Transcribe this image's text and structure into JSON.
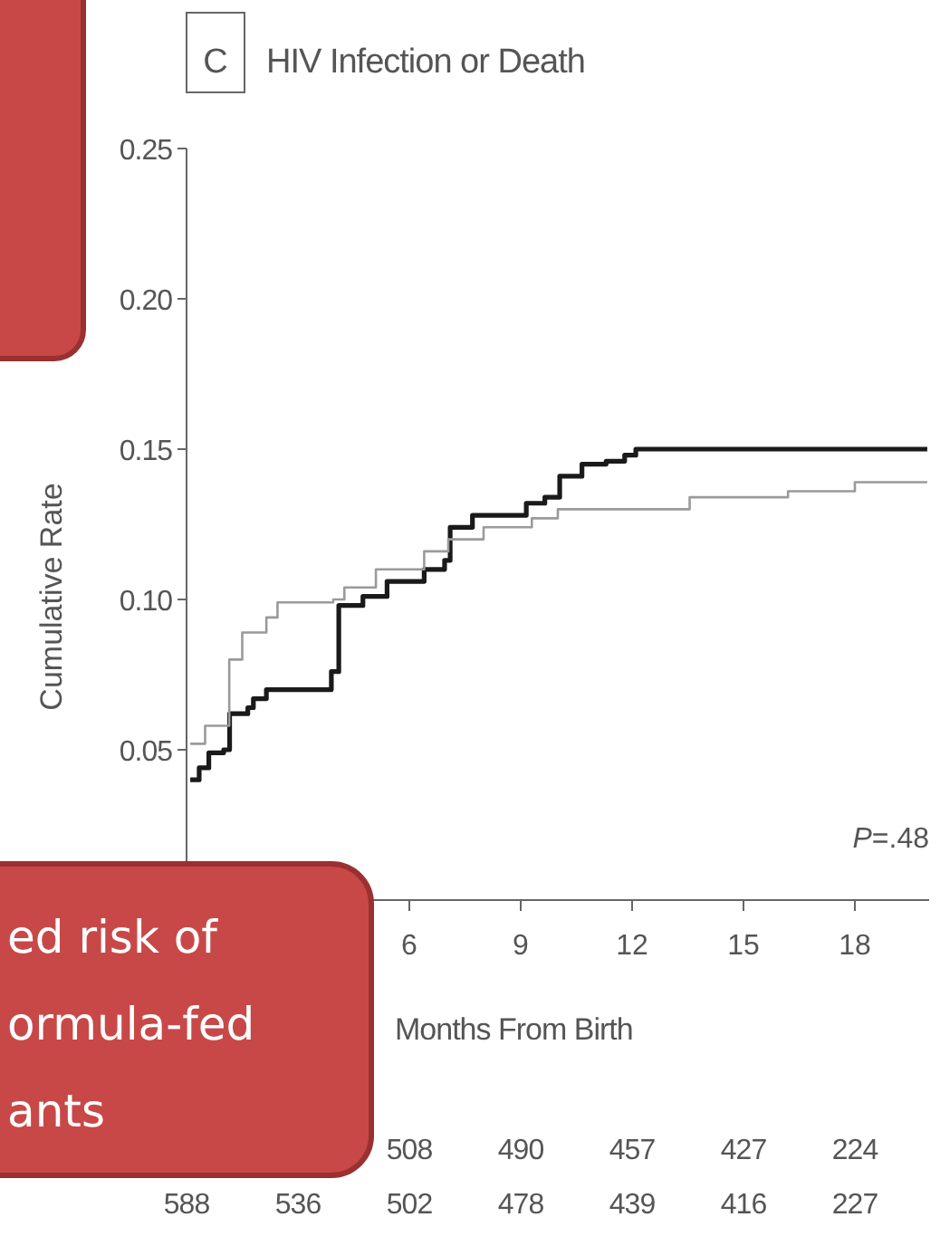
{
  "chart_data": {
    "type": "step",
    "title": "HIV Infection or Death",
    "xlabel": "Months From Birth",
    "ylabel": "Cumulative Rate",
    "xlim": [
      0,
      20
    ],
    "xticks": [
      6,
      9,
      12,
      15,
      18
    ],
    "ylim": [
      0,
      0.25
    ],
    "yticks": [
      0.05,
      {
        "value": 0.1,
        "label": "0.10"
      },
      0.15,
      {
        "value": 0.2,
        "label": "0.20"
      },
      0.25
    ],
    "series": [
      {
        "color": "#1a1a1a",
        "x": [
          0.1,
          0.34,
          0.6,
          1.0,
          1.16,
          1.65,
          1.8,
          2.15,
          3.9,
          4.1,
          4.75,
          5.4,
          6.4,
          6.95,
          7.1,
          7.7,
          9.15,
          9.65,
          10.05,
          10.65,
          11.3,
          11.8,
          12.1,
          19.95
        ],
        "values": [
          0.04,
          0.044,
          0.049,
          0.05,
          0.062,
          0.064,
          0.067,
          0.07,
          0.076,
          0.098,
          0.101,
          0.106,
          0.11,
          0.113,
          0.124,
          0.128,
          0.132,
          0.134,
          0.141,
          0.145,
          0.146,
          0.148,
          0.15,
          0.15
        ]
      },
      {
        "color": "#9a9a9a",
        "x": [
          0.1,
          0.5,
          1.15,
          1.5,
          2.15,
          2.45,
          3.95,
          4.25,
          5.1,
          6.4,
          7.05,
          8.0,
          9.3,
          10.0,
          13.55,
          16.2,
          18.0,
          19.95
        ],
        "values": [
          0.052,
          0.058,
          0.08,
          0.089,
          0.094,
          0.099,
          0.1,
          0.104,
          0.11,
          0.116,
          0.12,
          0.124,
          0.127,
          0.13,
          0.134,
          0.136,
          0.139,
          0.139
        ]
      }
    ],
    "annotations": [
      "C",
      "P=.48",
      "ed risk of\normula-fed\nants",
      "508 490 457 427 224",
      "588 536 502 478 439 416 227"
    ]
  }
}
